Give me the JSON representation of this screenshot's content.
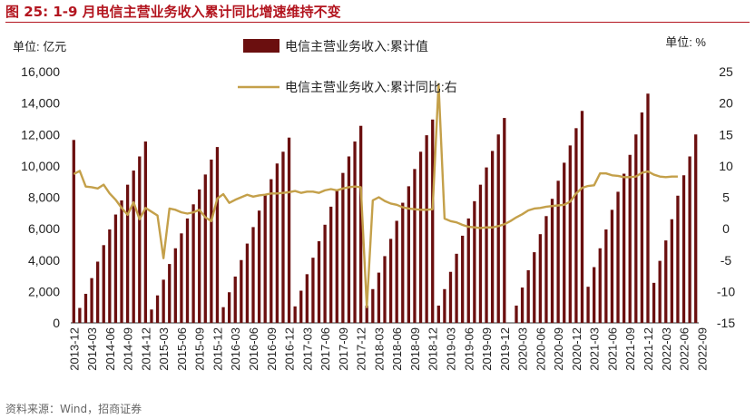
{
  "header": {
    "title": "图 25:  1-9 月电信主营业务收入累计同比增速维持不变"
  },
  "footer": {
    "source": "资料来源：Wind，招商证券"
  },
  "chart_data": {
    "type": "bar+line",
    "title": "图 25:  1-9 月电信主营业务收入累计同比增速维持不变",
    "left_unit": "单位:  亿元",
    "right_unit": "单位:  %",
    "ylim_left": [
      0,
      16000
    ],
    "ylim_right": [
      -15,
      25
    ],
    "yticks_left": [
      "0",
      "2,000",
      "4,000",
      "6,000",
      "8,000",
      "10,000",
      "12,000",
      "14,000",
      "16,000"
    ],
    "yticks_right": [
      "-15",
      "-10",
      "-5",
      "0",
      "5",
      "10",
      "15",
      "20",
      "25"
    ],
    "xtick_labels": [
      "2013-12",
      "2014-03",
      "2014-06",
      "2014-09",
      "2014-12",
      "2015-03",
      "2015-06",
      "2015-09",
      "2015-12",
      "2016-03",
      "2016-06",
      "2016-09",
      "2016-12",
      "2017-03",
      "2017-06",
      "2017-09",
      "2017-12",
      "2018-03",
      "2018-06",
      "2018-09",
      "2018-12",
      "2019-03",
      "2019-06",
      "2019-09",
      "2019-12",
      "2020-03",
      "2020-06",
      "2020-09",
      "2020-12",
      "2021-03",
      "2021-06",
      "2021-09",
      "2021-12",
      "2022-03",
      "2022-06",
      "2022-09"
    ],
    "series": [
      {
        "name": "电信主营业务收入:累计值",
        "type": "bar",
        "axis": "left",
        "color": "#6b0f0f",
        "values": [
          11650,
          950,
          1850,
          2850,
          3900,
          4950,
          5950,
          6900,
          7800,
          8800,
          9700,
          10600,
          11550,
          850,
          1750,
          2750,
          3750,
          4750,
          5700,
          6650,
          7550,
          8500,
          9450,
          10400,
          11200,
          1000,
          1950,
          2950,
          4000,
          5050,
          6100,
          7150,
          8150,
          9150,
          10150,
          10900,
          11800,
          1050,
          2050,
          3100,
          4150,
          5200,
          6250,
          7400,
          8450,
          9550,
          10600,
          11550,
          12550,
          1100,
          2150,
          3200,
          4250,
          5350,
          6500,
          7650,
          8700,
          9800,
          10900,
          11950,
          12950,
          1100,
          2150,
          3250,
          4400,
          5550,
          6650,
          7750,
          8800,
          9900,
          10950,
          12000,
          13050,
          0,
          1100,
          2250,
          3350,
          4500,
          5650,
          6800,
          7900,
          9050,
          10200,
          11300,
          12400,
          13500,
          2300,
          3550,
          4750,
          5950,
          7200,
          8350,
          9500,
          10700,
          12000,
          13400,
          14600,
          2550,
          3950,
          5250,
          6600,
          8100,
          9400,
          10600,
          12000
        ]
      },
      {
        "name": "电信主营业务收入:累计同比:右",
        "type": "line",
        "axis": "right",
        "color": "#c4a04a",
        "values": [
          8.7,
          9.2,
          6.7,
          6.6,
          6.4,
          7.0,
          5.6,
          4.6,
          3.3,
          2.2,
          4.2,
          1.5,
          3.3,
          2.7,
          2.1,
          -4.7,
          3.2,
          3.0,
          2.6,
          2.4,
          2.6,
          3.0,
          1.8,
          1.2,
          4.8,
          5.5,
          4.1,
          4.6,
          5.0,
          5.4,
          5.1,
          5.3,
          5.4,
          5.6,
          5.6,
          5.7,
          5.8,
          6.0,
          5.7,
          5.9,
          5.9,
          5.7,
          6.1,
          6.3,
          6.1,
          6.4,
          6.6,
          6.7,
          6.6,
          -12.5,
          4.5,
          5.0,
          4.4,
          4.0,
          3.8,
          3.4,
          3.2,
          3.1,
          3.0,
          3.0,
          3.1,
          23.0,
          1.6,
          1.2,
          1.0,
          0.6,
          0.3,
          0.2,
          0.1,
          0.2,
          0.2,
          0.4,
          0.7,
          1.2,
          1.8,
          2.3,
          2.9,
          3.2,
          3.3,
          3.5,
          3.6,
          3.7,
          3.8,
          4.3,
          5.6,
          6.5,
          6.8,
          6.9,
          8.8,
          8.8,
          8.5,
          8.4,
          8.2,
          8.2,
          8.3,
          8.9,
          9.1,
          8.6,
          8.3,
          8.2,
          8.3,
          8.3
        ]
      }
    ],
    "legend": "top-center"
  }
}
